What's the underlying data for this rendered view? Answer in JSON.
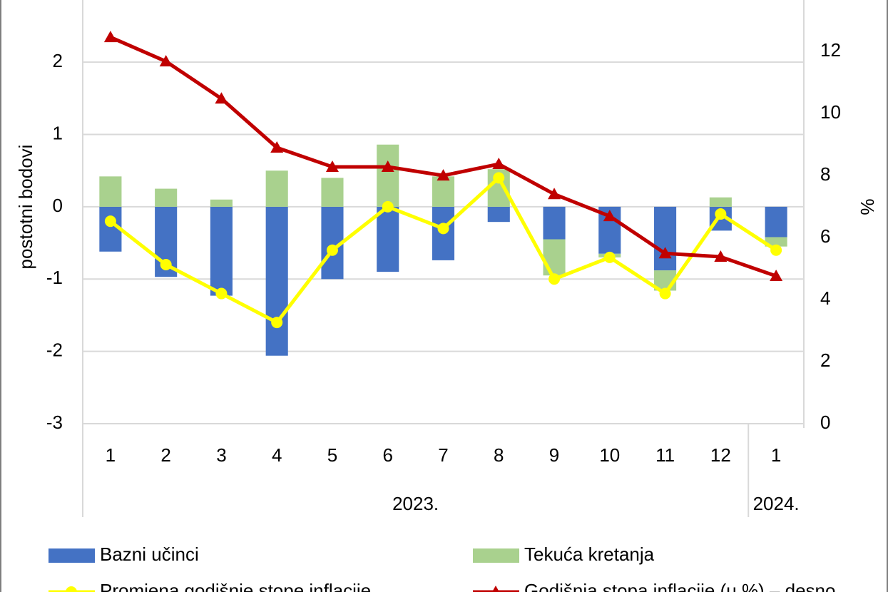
{
  "chart_data": {
    "type": "bar",
    "y_label": "postotni bodovi",
    "y2_label": "%",
    "categories": [
      "1",
      "2",
      "3",
      "4",
      "5",
      "6",
      "7",
      "8",
      "9",
      "10",
      "11",
      "12",
      "1"
    ],
    "category_groups": [
      {
        "name": "2023.",
        "count": 12
      },
      {
        "name": "2024.",
        "count": 1
      }
    ],
    "ylim": [
      -3,
      2.86
    ],
    "yticks": [
      -3,
      -2,
      -1,
      0,
      1,
      2
    ],
    "y2lim": [
      0,
      13.66
    ],
    "y2ticks": [
      0,
      2,
      4,
      6,
      8,
      10,
      12
    ],
    "grid": true,
    "stacked": true,
    "series": [
      {
        "name": "Bazni učinci",
        "kind": "bar",
        "color": "#4472c4",
        "values": [
          -0.62,
          -0.97,
          -1.23,
          -2.06,
          -1.0,
          -0.9,
          -0.74,
          -0.21,
          -0.45,
          -0.65,
          -0.88,
          -0.33,
          -0.42
        ]
      },
      {
        "name": "Tekuća kretanja",
        "kind": "bar",
        "color": "#a9d18e",
        "values": [
          0.42,
          0.25,
          0.1,
          0.5,
          0.4,
          0.86,
          0.42,
          0.52,
          -0.5,
          -0.05,
          -0.28,
          0.13,
          -0.13
        ]
      },
      {
        "name": "Promjena godišnje stope inflacije",
        "kind": "line",
        "marker": "circle",
        "color": "#ffff00",
        "values": [
          -0.2,
          -0.8,
          -1.2,
          -1.6,
          -0.6,
          0.0,
          -0.3,
          0.4,
          -1.0,
          -0.7,
          -1.2,
          -0.1,
          -0.6
        ]
      },
      {
        "name": "Godišnja stopa inflacije (u %) – desno",
        "kind": "line",
        "marker": "triangle",
        "axis": "y2",
        "color": "#c00000",
        "values": [
          12.46,
          11.68,
          10.48,
          8.9,
          8.28,
          8.28,
          8.0,
          8.37,
          7.4,
          6.69,
          5.49,
          5.38,
          4.76
        ]
      }
    ]
  }
}
